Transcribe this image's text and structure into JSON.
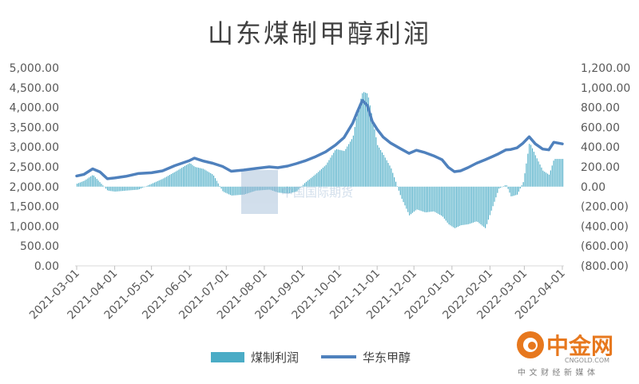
{
  "chart_data": {
    "type": "bar+line",
    "title": "山东煤制甲醇利润",
    "legend": {
      "position": "bottom",
      "items": [
        {
          "name": "煤制利润",
          "kind": "bar",
          "color": "#4BACC6"
        },
        {
          "name": "华东甲醇",
          "kind": "line",
          "color": "#4F81BD"
        }
      ]
    },
    "left_axis": {
      "ylim": [
        0,
        5000
      ],
      "ticks": [
        "0.00",
        "500.00",
        "1,000.00",
        "1,500.00",
        "2,000.00",
        "2,500.00",
        "3,000.00",
        "3,500.00",
        "4,000.00",
        "4,500.00",
        "5,000.00"
      ]
    },
    "right_axis": {
      "ylim": [
        -800,
        1200
      ],
      "ticks": [
        "(800.00)",
        "(600.00)",
        "(400.00)",
        "(200.00)",
        "0.00",
        "200.00",
        "400.00",
        "600.00",
        "800.00",
        "1,000.00",
        "1,200.00"
      ]
    },
    "x_axis": {
      "ticks": [
        "2021-03-01",
        "2021-04-01",
        "2021-05-01",
        "2021-06-01",
        "2021-07-01",
        "2021-08-01",
        "2021-09-01",
        "2021-10-01",
        "2021-11-01",
        "2021-12-01",
        "2022-01-01",
        "2022-02-01",
        "2022-03-01",
        "2022-04-01"
      ]
    },
    "series": [
      {
        "name": "华东甲醇",
        "axis": "left",
        "type": "line",
        "color": "#4F81BD",
        "points": [
          [
            "2021-03-01",
            2270
          ],
          [
            "2021-03-07",
            2310
          ],
          [
            "2021-03-14",
            2450
          ],
          [
            "2021-03-20",
            2370
          ],
          [
            "2021-03-26",
            2200
          ],
          [
            "2021-04-01",
            2220
          ],
          [
            "2021-04-10",
            2260
          ],
          [
            "2021-04-20",
            2330
          ],
          [
            "2021-05-01",
            2350
          ],
          [
            "2021-05-10",
            2400
          ],
          [
            "2021-05-20",
            2530
          ],
          [
            "2021-06-01",
            2660
          ],
          [
            "2021-06-05",
            2720
          ],
          [
            "2021-06-12",
            2650
          ],
          [
            "2021-06-20",
            2590
          ],
          [
            "2021-06-28",
            2510
          ],
          [
            "2021-07-05",
            2390
          ],
          [
            "2021-07-15",
            2420
          ],
          [
            "2021-07-25",
            2460
          ],
          [
            "2021-08-05",
            2500
          ],
          [
            "2021-08-12",
            2480
          ],
          [
            "2021-08-20",
            2520
          ],
          [
            "2021-08-27",
            2580
          ],
          [
            "2021-09-03",
            2650
          ],
          [
            "2021-09-12",
            2760
          ],
          [
            "2021-09-20",
            2880
          ],
          [
            "2021-09-28",
            3050
          ],
          [
            "2021-10-05",
            3240
          ],
          [
            "2021-10-12",
            3600
          ],
          [
            "2021-10-16",
            3900
          ],
          [
            "2021-10-20",
            4180
          ],
          [
            "2021-10-24",
            4050
          ],
          [
            "2021-10-28",
            3650
          ],
          [
            "2021-11-01",
            3450
          ],
          [
            "2021-11-06",
            3250
          ],
          [
            "2021-11-12",
            3100
          ],
          [
            "2021-11-20",
            2960
          ],
          [
            "2021-11-27",
            2840
          ],
          [
            "2021-12-03",
            2920
          ],
          [
            "2021-12-10",
            2860
          ],
          [
            "2021-12-17",
            2780
          ],
          [
            "2021-12-24",
            2680
          ],
          [
            "2021-12-29",
            2490
          ],
          [
            "2022-01-03",
            2380
          ],
          [
            "2022-01-08",
            2400
          ],
          [
            "2022-01-14",
            2480
          ],
          [
            "2022-01-21",
            2590
          ],
          [
            "2022-01-28",
            2680
          ],
          [
            "2022-02-03",
            2760
          ],
          [
            "2022-02-08",
            2830
          ],
          [
            "2022-02-14",
            2930
          ],
          [
            "2022-02-18",
            2940
          ],
          [
            "2022-02-23",
            2980
          ],
          [
            "2022-02-28",
            3100
          ],
          [
            "2022-03-05",
            3260
          ],
          [
            "2022-03-10",
            3080
          ],
          [
            "2022-03-16",
            2950
          ],
          [
            "2022-03-21",
            2930
          ],
          [
            "2022-03-25",
            3120
          ],
          [
            "2022-04-01",
            3080
          ]
        ]
      },
      {
        "name": "煤制利润",
        "axis": "right",
        "type": "bar",
        "color": "#4BACC6",
        "points": [
          [
            "2021-03-01",
            30
          ],
          [
            "2021-03-07",
            60
          ],
          [
            "2021-03-14",
            120
          ],
          [
            "2021-03-20",
            40
          ],
          [
            "2021-03-26",
            -40
          ],
          [
            "2021-04-01",
            -50
          ],
          [
            "2021-04-10",
            -40
          ],
          [
            "2021-04-20",
            -30
          ],
          [
            "2021-05-01",
            30
          ],
          [
            "2021-05-10",
            80
          ],
          [
            "2021-05-20",
            150
          ],
          [
            "2021-06-01",
            240
          ],
          [
            "2021-06-05",
            200
          ],
          [
            "2021-06-12",
            180
          ],
          [
            "2021-06-20",
            120
          ],
          [
            "2021-06-28",
            -50
          ],
          [
            "2021-07-05",
            -90
          ],
          [
            "2021-07-15",
            -80
          ],
          [
            "2021-07-25",
            -40
          ],
          [
            "2021-08-05",
            -30
          ],
          [
            "2021-08-12",
            -60
          ],
          [
            "2021-08-20",
            -70
          ],
          [
            "2021-08-27",
            -50
          ],
          [
            "2021-09-03",
            40
          ],
          [
            "2021-09-12",
            130
          ],
          [
            "2021-09-20",
            220
          ],
          [
            "2021-09-28",
            380
          ],
          [
            "2021-10-05",
            360
          ],
          [
            "2021-10-12",
            500
          ],
          [
            "2021-10-16",
            780
          ],
          [
            "2021-10-20",
            960
          ],
          [
            "2021-10-24",
            940
          ],
          [
            "2021-10-28",
            680
          ],
          [
            "2021-11-01",
            420
          ],
          [
            "2021-11-06",
            320
          ],
          [
            "2021-11-12",
            190
          ],
          [
            "2021-11-20",
            -100
          ],
          [
            "2021-11-27",
            -290
          ],
          [
            "2021-12-03",
            -230
          ],
          [
            "2021-12-10",
            -260
          ],
          [
            "2021-12-17",
            -250
          ],
          [
            "2021-12-24",
            -300
          ],
          [
            "2021-12-29",
            -380
          ],
          [
            "2022-01-03",
            -420
          ],
          [
            "2022-01-08",
            -390
          ],
          [
            "2022-01-14",
            -380
          ],
          [
            "2022-01-21",
            -350
          ],
          [
            "2022-01-28",
            -420
          ],
          [
            "2022-02-03",
            -200
          ],
          [
            "2022-02-08",
            -20
          ],
          [
            "2022-02-14",
            20
          ],
          [
            "2022-02-18",
            -100
          ],
          [
            "2022-02-23",
            -80
          ],
          [
            "2022-02-28",
            50
          ],
          [
            "2022-03-05",
            450
          ],
          [
            "2022-03-10",
            310
          ],
          [
            "2022-03-16",
            160
          ],
          [
            "2022-03-21",
            120
          ],
          [
            "2022-03-25",
            280
          ],
          [
            "2022-04-01",
            280
          ]
        ]
      }
    ]
  },
  "watermark": {
    "text": "中国国际期货"
  },
  "logo": {
    "name": "中金网",
    "domain": "CNGOLD.COM",
    "tagline": "中文财经新媒体",
    "color": "#E7781E"
  }
}
